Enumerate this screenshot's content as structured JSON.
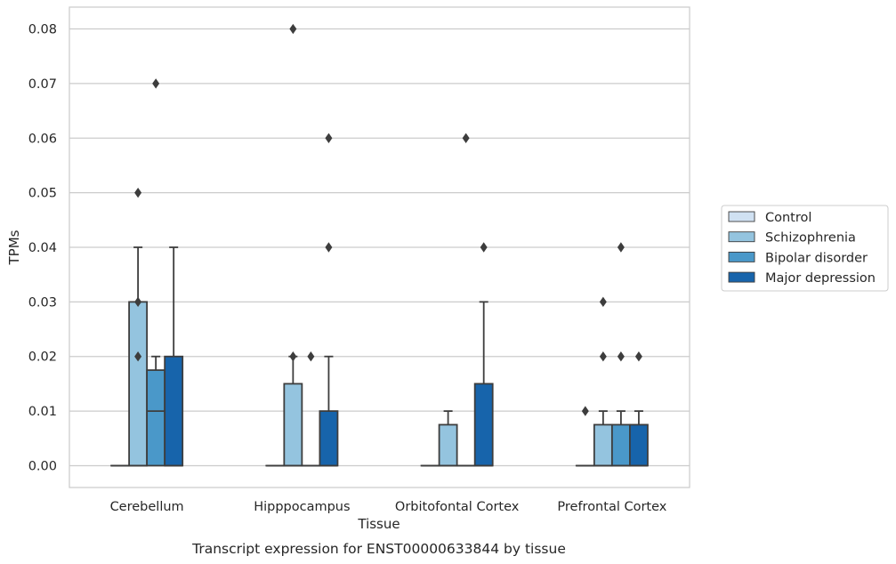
{
  "chart_data": {
    "type": "box",
    "title": "Transcript expression for ENST00000633844 by tissue",
    "xlabel": "Tissue",
    "ylabel": "TPMs",
    "ylim": [
      -0.004,
      0.084
    ],
    "yticks": [
      0.0,
      0.01,
      0.02,
      0.03,
      0.04,
      0.05,
      0.06,
      0.07,
      0.08
    ],
    "ytick_labels": [
      "0.00",
      "0.01",
      "0.02",
      "0.03",
      "0.04",
      "0.05",
      "0.06",
      "0.07",
      "0.08"
    ],
    "grid": true,
    "legend_position": "right",
    "categories": [
      "Cerebellum",
      "Hipppocampus",
      "Orbitofontal Cortex",
      "Prefrontal Cortex"
    ],
    "series": [
      {
        "name": "Control",
        "color": "#d0e1f2",
        "boxes": [
          {
            "whislo": 0,
            "q1": 0,
            "median": 0,
            "q3": 0,
            "whishi": 0,
            "fliers": []
          },
          {
            "whislo": 0,
            "q1": 0,
            "median": 0,
            "q3": 0,
            "whishi": 0,
            "fliers": []
          },
          {
            "whislo": 0,
            "q1": 0,
            "median": 0,
            "q3": 0,
            "whishi": 0,
            "fliers": []
          },
          {
            "whislo": 0,
            "q1": 0,
            "median": 0,
            "q3": 0,
            "whishi": 0,
            "fliers": [
              0.01
            ]
          }
        ]
      },
      {
        "name": "Schizophrenia",
        "color": "#94c4df",
        "boxes": [
          {
            "whislo": 0,
            "q1": 0,
            "median": 0,
            "q3": 0.03,
            "whishi": 0.04,
            "fliers": [
              0.02,
              0.03,
              0.05
            ]
          },
          {
            "whislo": 0,
            "q1": 0,
            "median": 0,
            "q3": 0.015,
            "whishi": 0.02,
            "fliers": [
              0.02,
              0.08
            ]
          },
          {
            "whislo": 0,
            "q1": 0,
            "median": 0,
            "q3": 0.0075,
            "whishi": 0.01,
            "fliers": []
          },
          {
            "whislo": 0,
            "q1": 0,
            "median": 0,
            "q3": 0.0075,
            "whishi": 0.01,
            "fliers": [
              0.02,
              0.03
            ]
          }
        ]
      },
      {
        "name": "Bipolar disorder",
        "color": "#4a98c9",
        "boxes": [
          {
            "whislo": 0,
            "q1": 0,
            "median": 0.01,
            "q3": 0.0175,
            "whishi": 0.02,
            "fliers": [
              0.07
            ]
          },
          {
            "whislo": 0,
            "q1": 0,
            "median": 0,
            "q3": 0,
            "whishi": 0,
            "fliers": [
              0.02
            ]
          },
          {
            "whislo": 0,
            "q1": 0,
            "median": 0,
            "q3": 0,
            "whishi": 0,
            "fliers": [
              0.06
            ]
          },
          {
            "whislo": 0,
            "q1": 0,
            "median": 0,
            "q3": 0.0075,
            "whishi": 0.01,
            "fliers": [
              0.02,
              0.04
            ]
          }
        ]
      },
      {
        "name": "Major depression",
        "color": "#1764ab",
        "boxes": [
          {
            "whislo": 0,
            "q1": 0,
            "median": 0,
            "q3": 0.02,
            "whishi": 0.04,
            "fliers": []
          },
          {
            "whislo": 0,
            "q1": 0,
            "median": 0,
            "q3": 0.01,
            "whishi": 0.02,
            "fliers": [
              0.04,
              0.06
            ]
          },
          {
            "whislo": 0,
            "q1": 0,
            "median": 0,
            "q3": 0.015,
            "whishi": 0.03,
            "fliers": [
              0.04
            ]
          },
          {
            "whislo": 0,
            "q1": 0,
            "median": 0,
            "q3": 0.0075,
            "whishi": 0.01,
            "fliers": [
              0.02
            ]
          }
        ]
      }
    ]
  }
}
